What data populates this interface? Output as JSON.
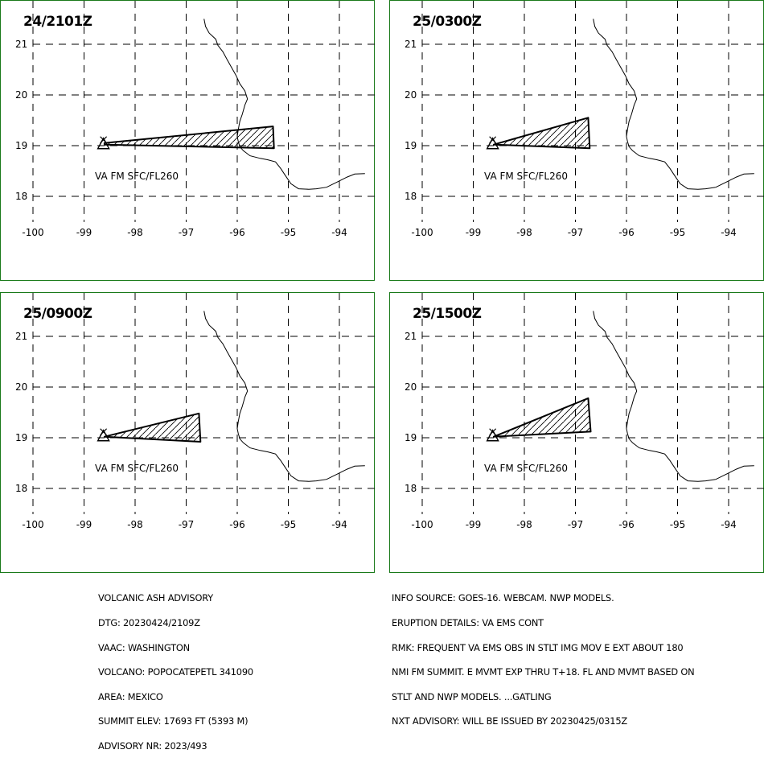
{
  "map": {
    "lon_range": [
      -100,
      -93.5
    ],
    "lat_range": [
      17.5,
      21.5
    ],
    "lon_ticks": [
      "-100",
      "-99",
      "-98",
      "-97",
      "-96",
      "-95",
      "-94"
    ],
    "lat_ticks": [
      "21",
      "20",
      "19",
      "18"
    ],
    "volcano": {
      "name": "POPOCATEPETL",
      "lon": -98.62,
      "lat": 19.02
    },
    "coastline": [
      [
        -96.65,
        21.5
      ],
      [
        -96.62,
        21.35
      ],
      [
        -96.55,
        21.22
      ],
      [
        -96.42,
        21.1
      ],
      [
        -96.38,
        20.98
      ],
      [
        -96.28,
        20.85
      ],
      [
        -96.2,
        20.7
      ],
      [
        -96.1,
        20.52
      ],
      [
        -96.02,
        20.38
      ],
      [
        -95.95,
        20.22
      ],
      [
        -95.85,
        20.08
      ],
      [
        -95.8,
        19.92
      ],
      [
        -95.85,
        19.8
      ],
      [
        -95.9,
        19.62
      ],
      [
        -95.95,
        19.48
      ],
      [
        -95.98,
        19.32
      ],
      [
        -96.0,
        19.18
      ],
      [
        -95.98,
        19.08
      ],
      [
        -95.95,
        18.98
      ],
      [
        -95.88,
        18.9
      ],
      [
        -95.75,
        18.8
      ],
      [
        -95.55,
        18.75
      ],
      [
        -95.4,
        18.72
      ],
      [
        -95.25,
        18.68
      ],
      [
        -95.15,
        18.55
      ],
      [
        -95.05,
        18.4
      ],
      [
        -94.95,
        18.25
      ],
      [
        -94.8,
        18.15
      ],
      [
        -94.6,
        18.14
      ],
      [
        -94.45,
        18.15
      ],
      [
        -94.25,
        18.18
      ],
      [
        -94.05,
        18.28
      ],
      [
        -93.85,
        18.38
      ],
      [
        -93.7,
        18.44
      ],
      [
        -93.5,
        18.45
      ]
    ]
  },
  "panels": [
    {
      "time": "24/2101Z",
      "label": "VA FM SFC/FL260",
      "polygon": [
        [
          -98.6,
          19.05
        ],
        [
          -95.3,
          19.38
        ],
        [
          -95.28,
          18.95
        ],
        [
          -98.6,
          19.02
        ]
      ]
    },
    {
      "time": "25/0300Z",
      "label": "VA FM SFC/FL260",
      "polygon": [
        [
          -98.6,
          19.02
        ],
        [
          -96.75,
          19.55
        ],
        [
          -96.72,
          18.95
        ]
      ]
    },
    {
      "time": "25/0900Z",
      "label": "VA FM SFC/FL260",
      "polygon": [
        [
          -98.6,
          19.02
        ],
        [
          -96.75,
          19.48
        ],
        [
          -96.72,
          18.92
        ]
      ]
    },
    {
      "time": "25/1500Z",
      "label": "VA FM SFC/FL260",
      "polygon": [
        [
          -98.6,
          19.02
        ],
        [
          -96.75,
          19.78
        ],
        [
          -96.7,
          19.12
        ]
      ]
    }
  ],
  "advisory_left": [
    "VOLCANIC ASH ADVISORY",
    "DTG: 20230424/2109Z",
    "VAAC: WASHINGTON",
    "VOLCANO: POPOCATEPETL 341090",
    "AREA: MEXICO",
    "SUMMIT ELEV: 17693 FT (5393 M)",
    "ADVISORY NR: 2023/493"
  ],
  "advisory_right": [
    "INFO SOURCE: GOES-16. WEBCAM. NWP MODELS.",
    "ERUPTION DETAILS: VA EMS CONT",
    "RMK: FREQUENT VA EMS OBS IN STLT IMG MOV E EXT ABOUT 180",
    "NMI FM SUMMIT. E MVMT EXP THRU T+18. FL AND MVMT BASED ON",
    "STLT AND NWP MODELS. ...GATLING",
    "NXT ADVISORY: WILL BE ISSUED BY 20230425/0315Z"
  ]
}
